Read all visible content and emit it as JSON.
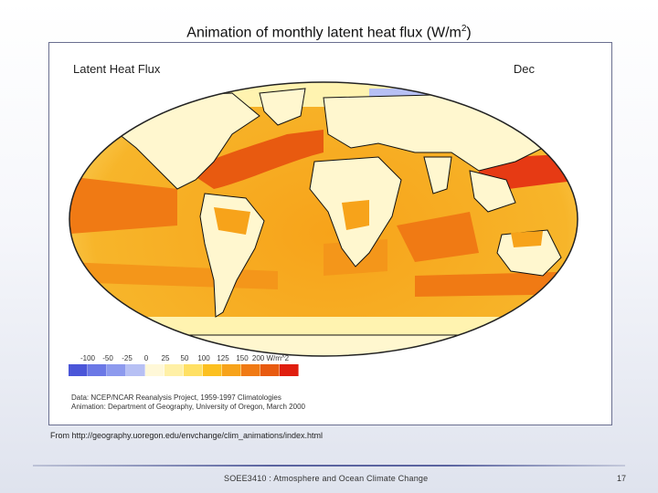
{
  "slide": {
    "title_text": "Animation of monthly latent heat flux (W/m",
    "title_superscript": "2",
    "title_suffix": ")"
  },
  "map": {
    "title": "Latent Heat Flux",
    "month": "Dec",
    "ocean_base_color": "#f3b61a",
    "land_color": "#fff7cf",
    "high_flux_color": "#e63a14",
    "low_flux_color": "#a7b2f0",
    "legend": {
      "ticks": [
        "-100",
        "-50",
        "-25",
        "0",
        "25",
        "50",
        "100",
        "125",
        "150",
        "200 W/m^2"
      ],
      "colors": [
        "#4b56d8",
        "#6b78e6",
        "#8d9aee",
        "#b7c0f4",
        "#fff8d8",
        "#fff0a6",
        "#ffe064",
        "#fcc020",
        "#f7a31a",
        "#f07a14",
        "#e85a10",
        "#e01e0f"
      ]
    },
    "credits": [
      "Data: NCEP/NCAR Reanalysis Project, 1959-1997 Climatologies",
      "Animation: Department of Geography, University of Oregon, March 2000"
    ]
  },
  "source_note": "From http://geography.uoregon.edu/envchange/clim_animations/index.html",
  "footer": {
    "course": "SOEE3410 : Atmosphere and Ocean Climate Change",
    "page_number": "17"
  }
}
